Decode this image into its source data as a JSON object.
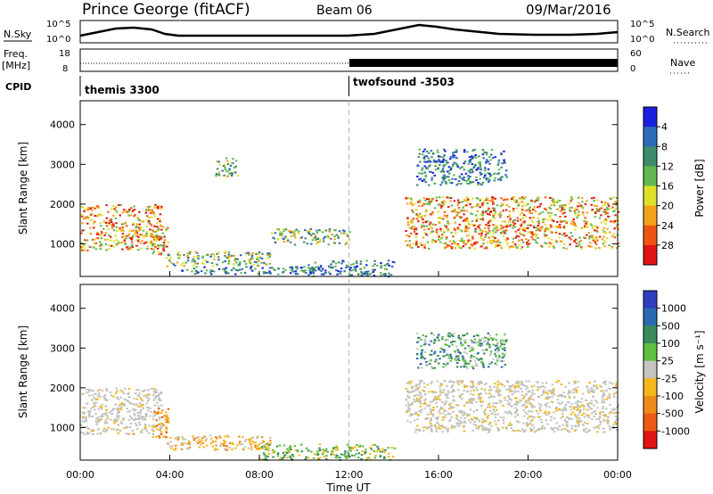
{
  "header": {
    "station": "Prince George (fitACF)",
    "beam": "Beam 06",
    "date": "09/Mar/2016"
  },
  "colors": {
    "frame": "#000000",
    "dashed_line": "#b4b4b4"
  },
  "strip": {
    "nsky_label": "N.Sky",
    "nsky_ticks": [
      "10^5",
      "10^0"
    ],
    "nsearch_label": "N.Search",
    "freq_label_1": "Freq.",
    "freq_label_2": "[MHz]",
    "freq_ticks": [
      "18",
      "8"
    ],
    "nave_label": "Nave",
    "nave_ticks": [
      "60",
      "0"
    ],
    "cpid_label": "CPID",
    "cpid_programs": [
      "themis 3300",
      "twofsound -3503"
    ],
    "cpid_switch_hour": 12
  },
  "chart_data": [
    {
      "type": "heatmap",
      "panel": "power",
      "ylabel": "Slant Range [km]",
      "xlim": [
        0,
        24
      ],
      "ylim": [
        180,
        4600
      ],
      "y_ticks": [
        1000,
        2000,
        3000,
        4000
      ],
      "colorbar_label": "Power [dB]",
      "colorbar_ticks": [
        "4",
        "8",
        "12",
        "16",
        "20",
        "24",
        "28"
      ],
      "colorbar_colors": [
        "#1c20e0",
        "#2d6ab8",
        "#3f8c6a",
        "#61b852",
        "#dde02a",
        "#f4a21a",
        "#ee5514",
        "#e01414"
      ],
      "echo_regions": [
        {
          "t": [
            0.0,
            3.6
          ],
          "r": [
            850,
            2000
          ],
          "level": "strong"
        },
        {
          "t": [
            3.2,
            3.9
          ],
          "r": [
            750,
            1500
          ],
          "level": "strong"
        },
        {
          "t": [
            3.8,
            8.5
          ],
          "r": [
            450,
            820
          ],
          "level": "medium"
        },
        {
          "t": [
            4.5,
            10.5
          ],
          "r": [
            250,
            450
          ],
          "level": "weak"
        },
        {
          "t": [
            6.0,
            7.0
          ],
          "r": [
            2700,
            3200
          ],
          "level": "medium"
        },
        {
          "t": [
            8.5,
            12.0
          ],
          "r": [
            1000,
            1400
          ],
          "level": "medium"
        },
        {
          "t": [
            10.0,
            14.0
          ],
          "r": [
            200,
            600
          ],
          "level": "weak"
        },
        {
          "t": [
            14.5,
            24.0
          ],
          "r": [
            900,
            2200
          ],
          "level": "strong"
        },
        {
          "t": [
            15.0,
            19.0
          ],
          "r": [
            2500,
            3400
          ],
          "level": "weak"
        }
      ]
    },
    {
      "type": "heatmap",
      "panel": "velocity",
      "ylabel": "Slant Range [km]",
      "xlabel": "Time UT",
      "xlim": [
        0,
        24
      ],
      "ylim": [
        180,
        4600
      ],
      "y_ticks": [
        1000,
        2000,
        3000,
        4000
      ],
      "x_ticks": [
        "00:00",
        "04:00",
        "08:00",
        "12:00",
        "16:00",
        "20:00",
        "00:00"
      ],
      "colorbar_label": "Velocity [m s⁻¹]",
      "colorbar_ticks": [
        "1000",
        "500",
        "100",
        "25",
        "-25",
        "-100",
        "-500",
        "-1000"
      ],
      "colorbar_colors": [
        "#2e3fc0",
        "#2a6ab0",
        "#3a8a5a",
        "#60c040",
        "#c4c4c0",
        "#f4b81a",
        "#f08a1a",
        "#ee5a14",
        "#e01414"
      ],
      "echo_regions": [
        {
          "t": [
            0.0,
            3.6
          ],
          "r": [
            850,
            2000
          ],
          "level": "gray"
        },
        {
          "t": [
            3.2,
            3.9
          ],
          "r": [
            750,
            1500
          ],
          "level": "orange"
        },
        {
          "t": [
            3.8,
            8.5
          ],
          "r": [
            450,
            820
          ],
          "level": "yellow"
        },
        {
          "t": [
            8.0,
            14.0
          ],
          "r": [
            200,
            600
          ],
          "level": "green"
        },
        {
          "t": [
            14.5,
            24.0
          ],
          "r": [
            900,
            2200
          ],
          "level": "gray"
        },
        {
          "t": [
            15.0,
            19.0
          ],
          "r": [
            2500,
            3400
          ],
          "level": "teal"
        }
      ]
    }
  ]
}
